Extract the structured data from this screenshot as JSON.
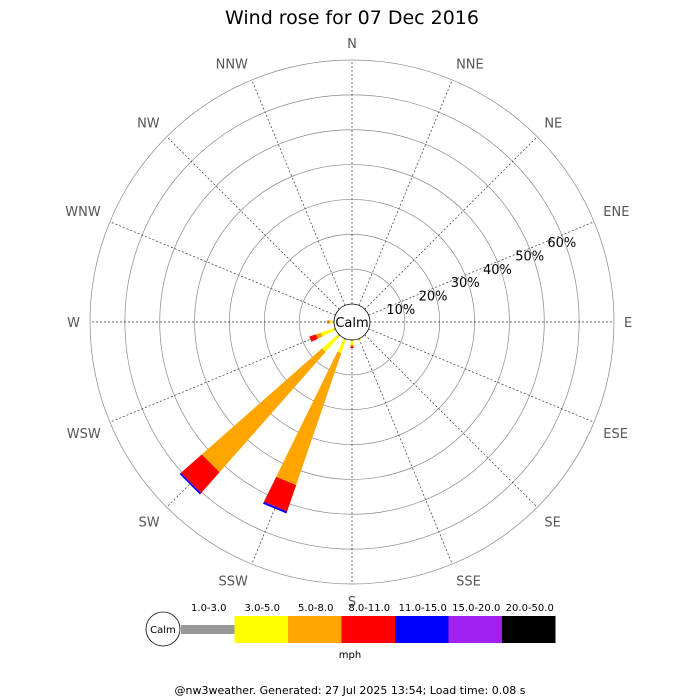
{
  "chart_data": {
    "type": "polar-bar",
    "title": "Wind rose for 07 Dec 2016",
    "directions": [
      "N",
      "NNE",
      "NE",
      "ENE",
      "E",
      "ESE",
      "SE",
      "SSE",
      "S",
      "SSW",
      "SW",
      "WSW",
      "W",
      "WNW",
      "NW",
      "NNW"
    ],
    "radial_ticks": [
      "10%",
      "20%",
      "30%",
      "40%",
      "50%",
      "60%"
    ],
    "radial_max": 70,
    "calm_label": "Calm",
    "bins": [
      {
        "label": "1.0-3.0",
        "color": "#999999"
      },
      {
        "label": "3.0-5.0",
        "color": "#ffff00"
      },
      {
        "label": "5.0-8.0",
        "color": "#ffa500"
      },
      {
        "label": "8.0-11.0",
        "color": "#ff0000"
      },
      {
        "label": "11.0-15.0",
        "color": "#0000ff"
      },
      {
        "label": "15.0-20.0",
        "color": "#a020f0"
      },
      {
        "label": "20.0-50.0",
        "color": "#000000"
      }
    ],
    "series": [
      {
        "direction": "SSW",
        "values": [
          0.3,
          4.0,
          40.0,
          8.0,
          0.6,
          0,
          0
        ]
      },
      {
        "direction": "SW",
        "values": [
          0.3,
          6.0,
          46.0,
          8.0,
          0.5,
          0,
          0
        ]
      },
      {
        "direction": "WSW",
        "values": [
          0.3,
          4.0,
          1.5,
          2.0,
          0,
          0,
          0
        ]
      },
      {
        "direction": "W",
        "values": [
          0.3,
          0.8,
          0.5,
          0.3,
          0,
          0,
          0
        ]
      },
      {
        "direction": "S",
        "values": [
          0.3,
          1.0,
          0.5,
          0.5,
          0,
          0,
          0
        ]
      },
      {
        "direction": "SSE",
        "values": [
          0.3,
          0.5,
          0,
          0,
          0,
          0,
          0
        ]
      }
    ],
    "legend_unit": "mph",
    "legend_placement": "bottom"
  },
  "footer": "@nw3weather. Generated: 27 Jul 2025 13:54; Load time: 0.08 s"
}
